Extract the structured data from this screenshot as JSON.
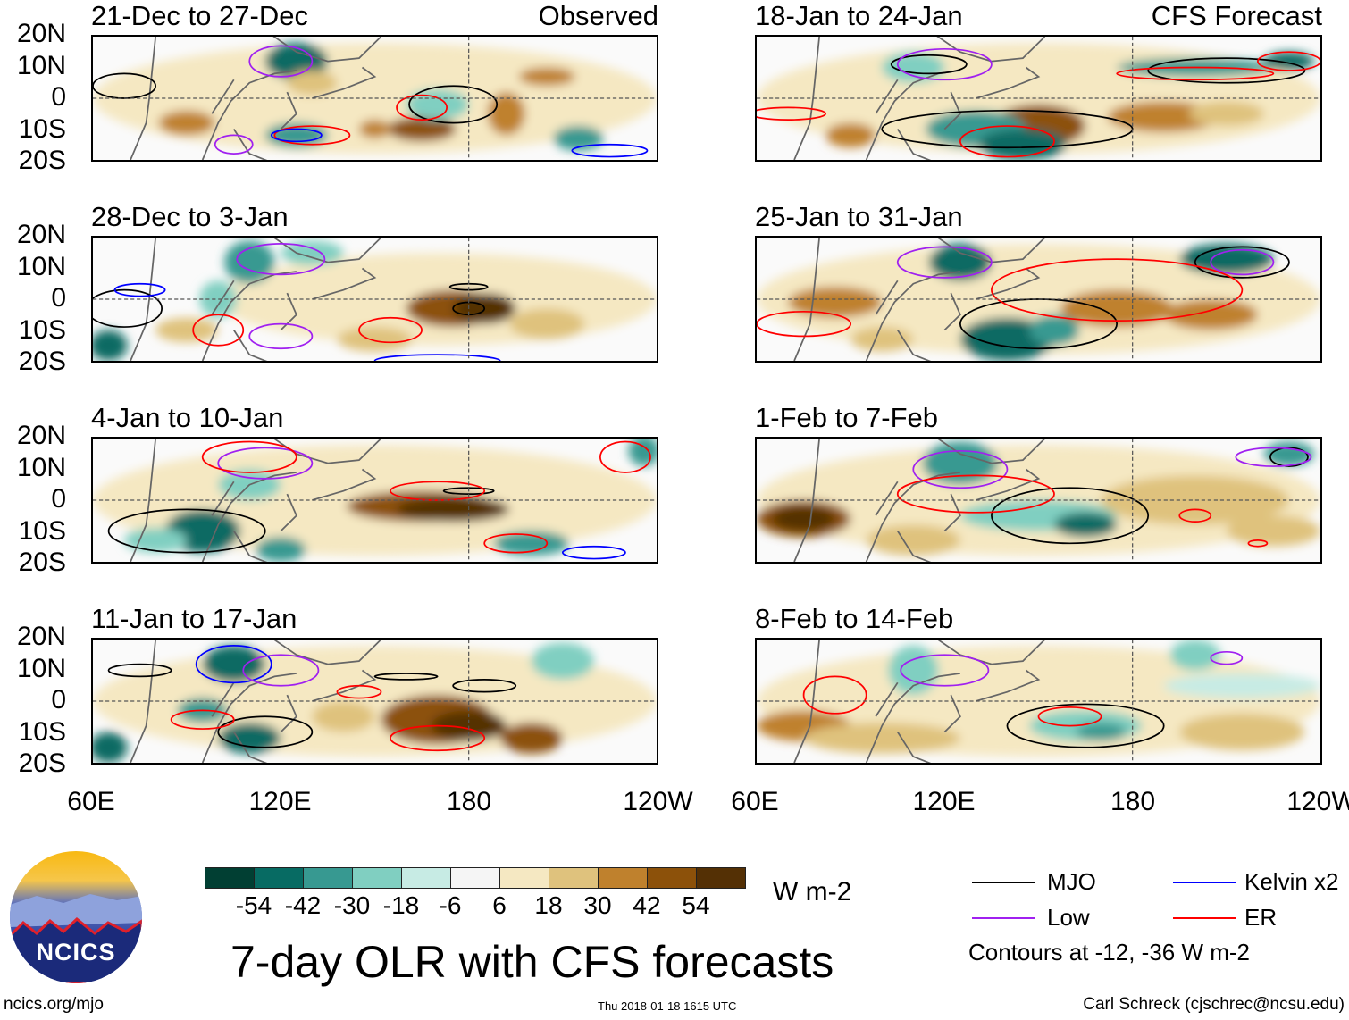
{
  "panels": [
    {
      "title": "21-Dec to 27-Dec",
      "right_label": "Observed"
    },
    {
      "title": "28-Dec to 3-Jan"
    },
    {
      "title": "4-Jan to 10-Jan"
    },
    {
      "title": "11-Jan to 17-Jan"
    },
    {
      "title": "18-Jan to 24-Jan",
      "right_label": "CFS Forecast"
    },
    {
      "title": "25-Jan to 31-Jan"
    },
    {
      "title": "1-Feb to 7-Feb"
    },
    {
      "title": "8-Feb to 14-Feb"
    }
  ],
  "lat_labels": [
    "20N",
    "10N",
    "0",
    "10S",
    "20S"
  ],
  "lon_labels": [
    "60E",
    "120E",
    "180",
    "120W"
  ],
  "colorbar": {
    "ticks": [
      "-54",
      "-42",
      "-30",
      "-18",
      "-6",
      "6",
      "18",
      "30",
      "42",
      "54"
    ],
    "colors": [
      "#013f33",
      "#076b63",
      "#379991",
      "#80cfc1",
      "#c7ebe4",
      "#f5f5f5",
      "#f5e8c2",
      "#dfc27d",
      "#bf812d",
      "#8c510a",
      "#543005"
    ],
    "units": "W m-2"
  },
  "title": "7-day OLR with CFS forecasts",
  "legend": {
    "items": [
      {
        "label": "MJO",
        "color": "#000000"
      },
      {
        "label": "Low",
        "color": "#a020f0"
      },
      {
        "label": "Kelvin x2",
        "color": "#0000ff"
      },
      {
        "label": "ER",
        "color": "#ff0000"
      }
    ],
    "note": "Contours at -12, -36 W m-2"
  },
  "logo": {
    "text": "NCICS"
  },
  "footer": {
    "url": "ncics.org/mjo",
    "timestamp": "Thu 2018-01-18 1615 UTC",
    "author": "Carl Schreck (cjschrec@ncsu.edu)"
  }
}
